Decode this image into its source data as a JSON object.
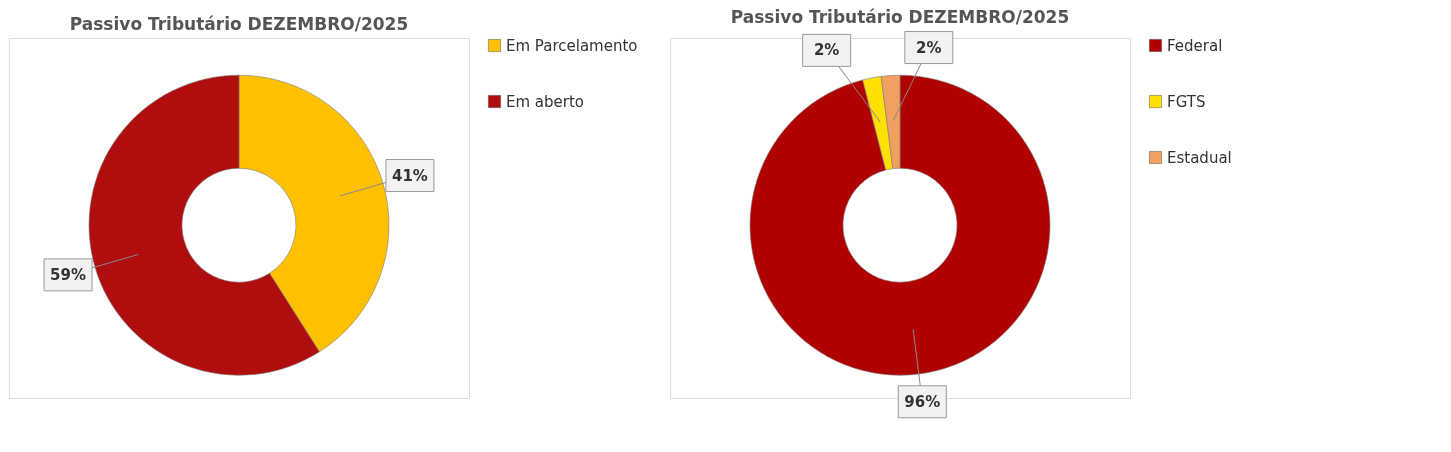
{
  "chart_data": [
    {
      "type": "donut",
      "title": "Passivo Tributário DEZEMBRO/2025",
      "categories": [
        "Em Parcelamento",
        "Em aberto"
      ],
      "values": [
        41,
        59
      ],
      "colors": [
        "#ffc000",
        "#b00e0e"
      ],
      "value_labels": [
        "41%",
        "59%"
      ],
      "legend": "right"
    },
    {
      "type": "donut",
      "title": "Passivo Tributário DEZEMBRO/2025",
      "categories": [
        "Federal",
        "FGTS",
        "Estadual"
      ],
      "values": [
        96,
        2,
        2
      ],
      "colors": [
        "#b00000",
        "#ffe000",
        "#f0a060"
      ],
      "value_labels": [
        "96%",
        "2%",
        "2%"
      ],
      "legend": "right"
    }
  ]
}
